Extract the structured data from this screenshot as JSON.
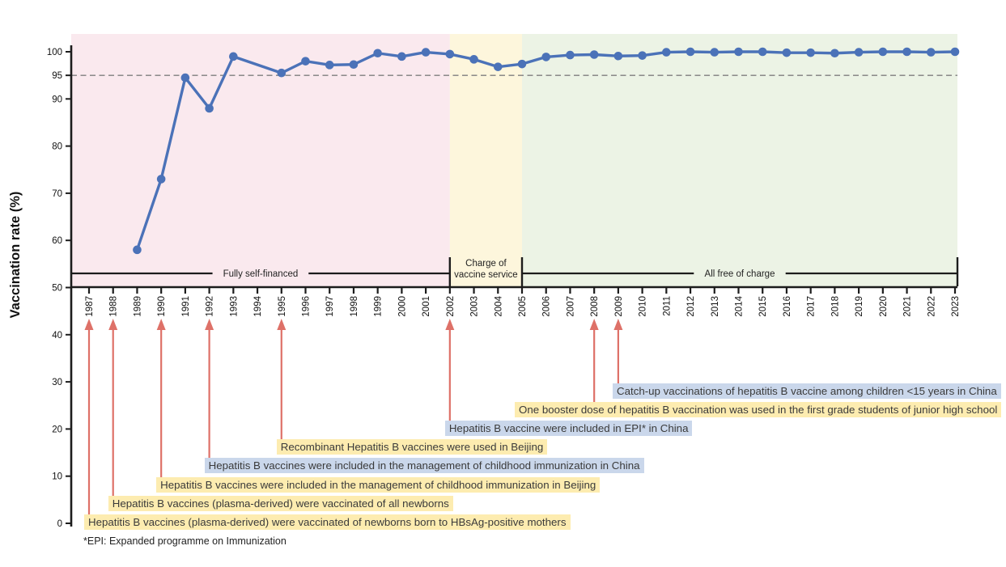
{
  "chart_data": {
    "type": "line",
    "title": "",
    "ylabel": "Vaccination rate (%)",
    "xlabel": "",
    "ylim": [
      0,
      100
    ],
    "yticks": [
      0,
      10,
      20,
      30,
      40,
      50,
      60,
      70,
      80,
      90,
      95,
      100
    ],
    "reference_line": 95,
    "grid": false,
    "legend": "none",
    "x": [
      1987,
      1988,
      1989,
      1990,
      1991,
      1992,
      1993,
      1994,
      1995,
      1996,
      1997,
      1998,
      1999,
      2000,
      2001,
      2002,
      2003,
      2004,
      2005,
      2006,
      2007,
      2008,
      2009,
      2010,
      2011,
      2012,
      2013,
      2014,
      2015,
      2016,
      2017,
      2018,
      2019,
      2020,
      2021,
      2022,
      2023
    ],
    "values": [
      null,
      null,
      58,
      73,
      94.5,
      88,
      99,
      null,
      95.5,
      98,
      97.2,
      97.3,
      99.7,
      99,
      99.9,
      99.5,
      98.4,
      96.8,
      97.4,
      98.9,
      99.3,
      99.4,
      99.1,
      99.2,
      99.9,
      100,
      99.9,
      100,
      100,
      99.8,
      99.8,
      99.7,
      99.9,
      100,
      100,
      99.9,
      100
    ],
    "series_name": "Vaccination rate",
    "regions": [
      {
        "label": "Fully self-financed",
        "start": 1987,
        "end": 2002,
        "color": "#fae9ee"
      },
      {
        "label": "Charge of vaccine service",
        "label_lines": [
          "Charge of",
          "vaccine service"
        ],
        "start": 2002,
        "end": 2005,
        "color": "#fdf6dc"
      },
      {
        "label": "All free of charge",
        "start": 2005,
        "end": 2023,
        "color": "#ecf3e5"
      }
    ],
    "annotations": [
      {
        "year": 1987,
        "highlight": "yellow",
        "text": "Hepatitis B vaccines (plasma-derived) were vaccinated of newborns born to HBsAg-positive mothers"
      },
      {
        "year": 1988,
        "highlight": "yellow",
        "text": "Hepatitis B vaccines (plasma-derived) were vaccinated of all newborns"
      },
      {
        "year": 1990,
        "highlight": "yellow",
        "text": "Hepatitis B vaccines were included in the management of childhood immunization in Beijing"
      },
      {
        "year": 1992,
        "highlight": "blue",
        "text": "Hepatitis B vaccines were included in the management of childhood immunization in China"
      },
      {
        "year": 1995,
        "highlight": "yellow",
        "text": "Recombinant Hepatitis B vaccines were used in Beijing"
      },
      {
        "year": 2002,
        "highlight": "blue",
        "text": "Hepatitis B vaccine were included in EPI* in China"
      },
      {
        "year": 2008,
        "highlight": "yellow",
        "text": "One booster dose of hepatitis B vaccination was used in the first grade students of junior high school"
      },
      {
        "year": 2009,
        "highlight": "blue",
        "text": "Catch-up vaccinations of hepatitis B vaccine among children <15 years in China"
      }
    ]
  },
  "footnote": "*EPI: Expanded programme on Immunization",
  "colors": {
    "line": "#4b72b8",
    "arrow": "#de7168",
    "highlight_yellow": "#fdecb0",
    "highlight_blue": "#cad7eb",
    "region_pink": "#fae9ee",
    "region_yellow": "#fdf6dc",
    "region_green": "#ecf3e5",
    "reference_dash": "#7e7e7e",
    "axis": "#1c1c1c",
    "text": "#3a3a3a"
  }
}
